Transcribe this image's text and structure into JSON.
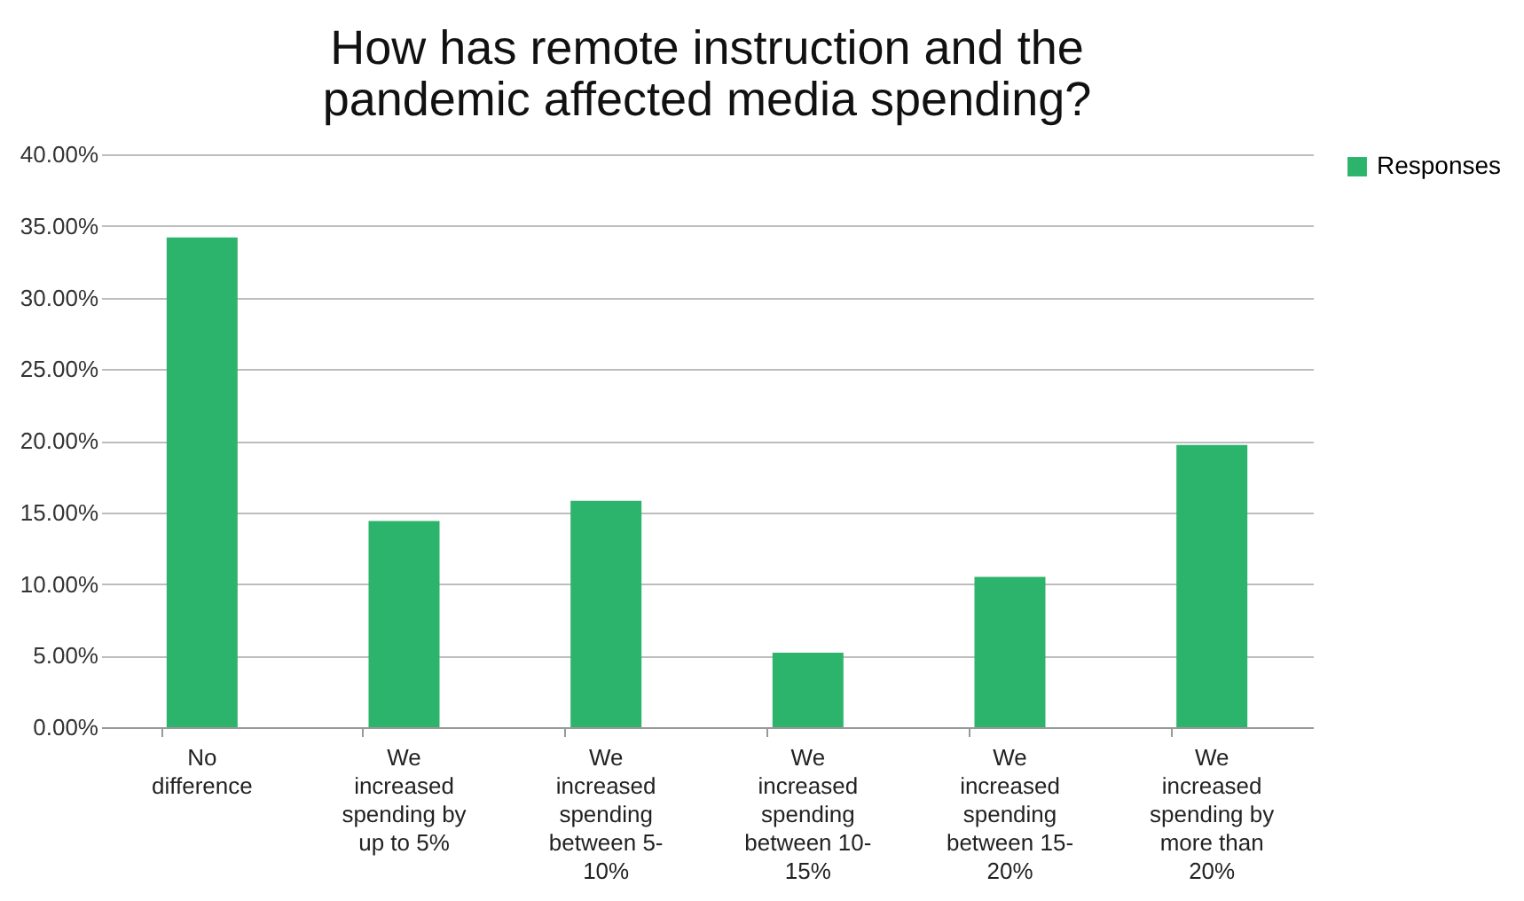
{
  "chart_data": {
    "type": "bar",
    "title": "How has remote instruction and the pandemic affected media spending?",
    "categories": [
      "No difference",
      "We increased spending by up to 5%",
      "We increased spending between 5-10%",
      "We increased spending between 10-15%",
      "We increased spending between 15-20%",
      "We increased spending by more than 20%"
    ],
    "series": [
      {
        "name": "Responses",
        "color": "#2db46c",
        "values": [
          34.2,
          14.4,
          15.8,
          5.2,
          10.5,
          19.7
        ]
      }
    ],
    "ylim": [
      0,
      40
    ],
    "yticks": [
      {
        "value": 0,
        "label": "0.00%"
      },
      {
        "value": 5,
        "label": "5.00%"
      },
      {
        "value": 10,
        "label": "10.00%"
      },
      {
        "value": 15,
        "label": "15.00%"
      },
      {
        "value": 20,
        "label": "20.00%"
      },
      {
        "value": 25,
        "label": "25.00%"
      },
      {
        "value": 30,
        "label": "30.00%"
      },
      {
        "value": 35,
        "label": "35.00%"
      },
      {
        "value": 40,
        "label": "40.00%"
      }
    ],
    "grid": "y",
    "legend": "right"
  }
}
